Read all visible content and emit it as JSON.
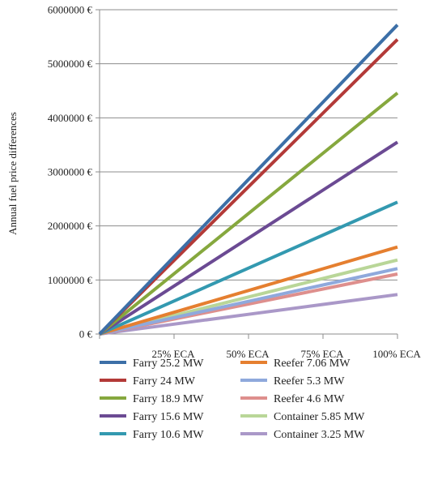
{
  "chart_data": {
    "type": "line",
    "title": "",
    "xlabel": "",
    "ylabel": "Annual fuel price differences",
    "x": [
      0,
      25,
      50,
      75,
      100
    ],
    "x_tick_labels": [
      "",
      "25% ECA",
      "50% ECA",
      "75% ECA",
      "100% ECA"
    ],
    "ylim": [
      0,
      6000000
    ],
    "y_ticks": [
      0,
      1000000,
      2000000,
      3000000,
      4000000,
      5000000,
      6000000
    ],
    "y_tick_labels": [
      "0 €",
      "1000000 €",
      "2000000 €",
      "3000000 €",
      "4000000 €",
      "5000000 €",
      "6000000 €"
    ],
    "grid": true,
    "legend_position": "bottom",
    "series": [
      {
        "name": "Farry 25.2 MW",
        "color": "#3c6fa7",
        "values": [
          0,
          1430000,
          2860000,
          4290000,
          5720000
        ]
      },
      {
        "name": "Farry 24 MW",
        "color": "#b33a38",
        "values": [
          0,
          1362500,
          2725000,
          4087500,
          5450000
        ]
      },
      {
        "name": "Farry 18.9 MW",
        "color": "#86a83e",
        "values": [
          0,
          1115000,
          2230000,
          3345000,
          4460000
        ]
      },
      {
        "name": "Farry 15.6 MW",
        "color": "#6b4a93",
        "values": [
          0,
          887500,
          1775000,
          2662500,
          3550000
        ]
      },
      {
        "name": "Farry 10.6 MW",
        "color": "#3399b0",
        "values": [
          0,
          610000,
          1220000,
          1830000,
          2440000
        ]
      },
      {
        "name": "Reefer 7.06 MW",
        "color": "#e57f30",
        "values": [
          0,
          402500,
          805000,
          1207500,
          1610000
        ]
      },
      {
        "name": "Reefer 5.3 MW",
        "color": "#8fa9dc",
        "values": [
          0,
          302500,
          605000,
          907500,
          1210000
        ]
      },
      {
        "name": "Reefer 4.6 MW",
        "color": "#de8f8d",
        "values": [
          0,
          277500,
          555000,
          832500,
          1110000
        ]
      },
      {
        "name": "Container 5.85 MW",
        "color": "#b9d698",
        "values": [
          0,
          342500,
          685000,
          1027500,
          1370000
        ]
      },
      {
        "name": "Container 3.25 MW",
        "color": "#aa98c8",
        "values": [
          0,
          182500,
          365000,
          547500,
          730000
        ]
      }
    ]
  }
}
